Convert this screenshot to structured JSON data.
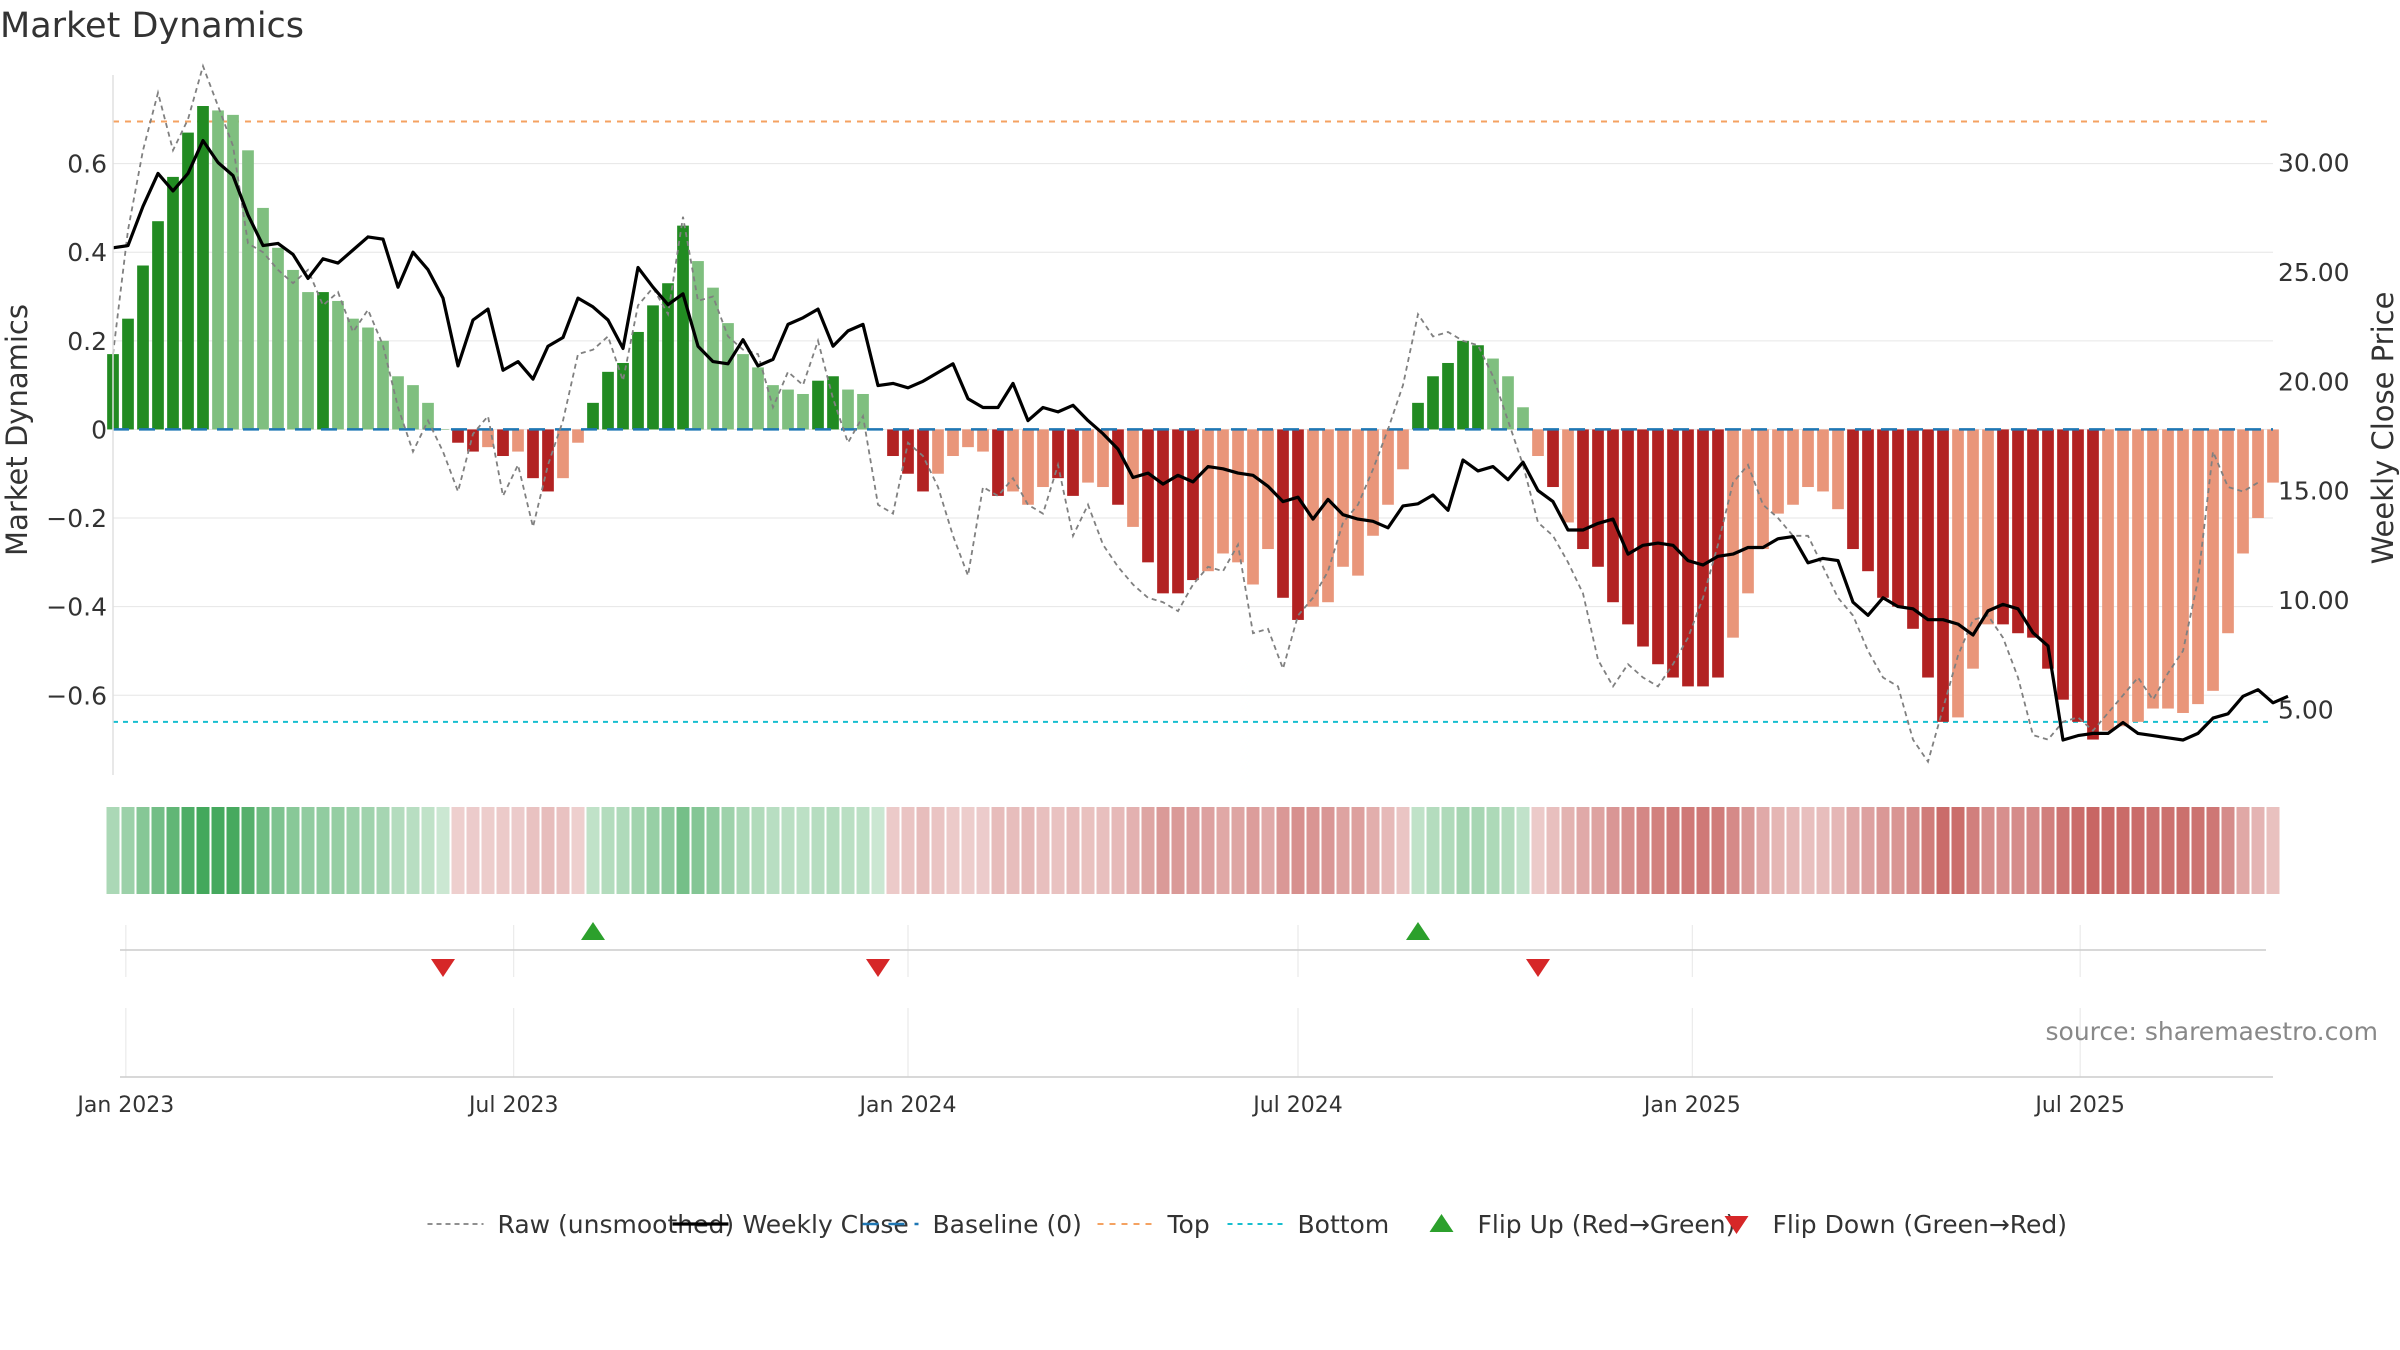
{
  "chart_data": {
    "type": "bar",
    "title": "Market Dynamics",
    "ylabel": "Market Dynamics",
    "ylabel_right": "Weekly Close Price",
    "source": "source: sharemaestro.com",
    "ylim": [
      -0.78,
      0.8
    ],
    "y2lim": [
      2.0,
      34.0
    ],
    "yticks": [
      {
        "v": 0.6,
        "label": "0.6"
      },
      {
        "v": 0.4,
        "label": "0.4"
      },
      {
        "v": 0.2,
        "label": "0.2"
      },
      {
        "v": 0,
        "label": "0"
      },
      {
        "v": -0.2,
        "label": "−0.2"
      },
      {
        "v": -0.4,
        "label": "−0.4"
      },
      {
        "v": -0.6,
        "label": "−0.6"
      }
    ],
    "y2ticks": [
      {
        "v": 30,
        "label": "30.00"
      },
      {
        "v": 25,
        "label": "25.00"
      },
      {
        "v": 20,
        "label": "20.00"
      },
      {
        "v": 15,
        "label": "15.00"
      },
      {
        "v": 10,
        "label": "10.00"
      },
      {
        "v": 5,
        "label": "5.00"
      }
    ],
    "x_start": "2022-12-26",
    "x_end": "2025-09-29",
    "xticks": [
      {
        "date": "2023-01-01",
        "label": "Jan 2023"
      },
      {
        "date": "2023-07-01",
        "label": "Jul 2023"
      },
      {
        "date": "2024-01-01",
        "label": "Jan 2024"
      },
      {
        "date": "2024-07-01",
        "label": "Jul 2024"
      },
      {
        "date": "2025-01-01",
        "label": "Jan 2025"
      },
      {
        "date": "2025-07-01",
        "label": "Jul 2025"
      }
    ],
    "first_week": "2022-12-26",
    "top_level": 0.695,
    "bottom_level": -0.66,
    "baseline": 0,
    "colors": {
      "strong_up": "#228B22",
      "weak_up": "#7FBF7F",
      "strong_down": "#B22222",
      "weak_down": "#E9967A",
      "raw": "#808080",
      "close": "#000000",
      "baseline": "#1f77b4",
      "top": "#f4a261",
      "bottom": "#17becf",
      "flip_up": "#2ca02c",
      "flip_down": "#d62728"
    },
    "dynamics": [
      0.17,
      0.25,
      0.37,
      0.47,
      0.57,
      0.67,
      0.73,
      0.72,
      0.71,
      0.63,
      0.5,
      0.41,
      0.36,
      0.31,
      0.31,
      0.29,
      0.25,
      0.23,
      0.2,
      0.12,
      0.1,
      0.06,
      0,
      -0.03,
      -0.05,
      -0.04,
      -0.06,
      -0.05,
      -0.11,
      -0.14,
      -0.11,
      -0.03,
      0.06,
      0.13,
      0.15,
      0.22,
      0.28,
      0.33,
      0.46,
      0.38,
      0.32,
      0.24,
      0.17,
      0.14,
      0.1,
      0.09,
      0.08,
      0.11,
      0.12,
      0.09,
      0.08,
      0,
      -0.06,
      -0.1,
      -0.14,
      -0.1,
      -0.06,
      -0.04,
      -0.05,
      -0.15,
      -0.14,
      -0.17,
      -0.13,
      -0.11,
      -0.15,
      -0.12,
      -0.13,
      -0.17,
      -0.22,
      -0.3,
      -0.37,
      -0.37,
      -0.34,
      -0.32,
      -0.28,
      -0.3,
      -0.35,
      -0.27,
      -0.38,
      -0.43,
      -0.4,
      -0.39,
      -0.31,
      -0.33,
      -0.24,
      -0.17,
      -0.09,
      0.06,
      0.12,
      0.15,
      0.2,
      0.19,
      0.16,
      0.12,
      0.05,
      -0.06,
      -0.13,
      -0.21,
      -0.27,
      -0.31,
      -0.39,
      -0.44,
      -0.49,
      -0.53,
      -0.56,
      -0.58,
      -0.58,
      -0.56,
      -0.47,
      -0.37,
      -0.27,
      -0.19,
      -0.17,
      -0.13,
      -0.14,
      -0.18,
      -0.27,
      -0.32,
      -0.38,
      -0.4,
      -0.45,
      -0.56,
      -0.66,
      -0.65,
      -0.54,
      -0.44,
      -0.44,
      -0.46,
      -0.47,
      -0.54,
      -0.61,
      -0.66,
      -0.7,
      -0.68,
      -0.67,
      -0.66,
      -0.63,
      -0.63,
      -0.64,
      -0.62,
      -0.59,
      -0.46,
      -0.28,
      -0.2,
      -0.12
    ],
    "strength": [
      "s",
      "s",
      "s",
      "s",
      "s",
      "s",
      "s",
      "w",
      "w",
      "w",
      "w",
      "w",
      "w",
      "w",
      "s",
      "w",
      "w",
      "w",
      "w",
      "w",
      "w",
      "w",
      "w",
      "s",
      "s",
      "w",
      "s",
      "w",
      "s",
      "s",
      "w",
      "w",
      "s",
      "s",
      "s",
      "s",
      "s",
      "s",
      "s",
      "w",
      "w",
      "w",
      "w",
      "w",
      "w",
      "w",
      "w",
      "s",
      "s",
      "w",
      "w",
      "w",
      "s",
      "s",
      "s",
      "w",
      "w",
      "w",
      "w",
      "s",
      "w",
      "w",
      "w",
      "s",
      "s",
      "w",
      "w",
      "s",
      "w",
      "s",
      "s",
      "s",
      "s",
      "w",
      "w",
      "w",
      "w",
      "w",
      "s",
      "s",
      "w",
      "w",
      "w",
      "w",
      "w",
      "w",
      "w",
      "s",
      "s",
      "s",
      "s",
      "s",
      "w",
      "w",
      "w",
      "w",
      "s",
      "w",
      "s",
      "s",
      "s",
      "s",
      "s",
      "s",
      "s",
      "s",
      "s",
      "s",
      "w",
      "w",
      "w",
      "w",
      "w",
      "w",
      "w",
      "w",
      "s",
      "s",
      "s",
      "s",
      "s",
      "s",
      "s",
      "w",
      "w",
      "w",
      "s",
      "s",
      "s",
      "s",
      "s",
      "s",
      "s",
      "w",
      "w",
      "w",
      "w",
      "w",
      "w",
      "w",
      "w",
      "w",
      "w",
      "w",
      "w",
      "w"
    ],
    "raw": [
      0.17,
      0.45,
      0.63,
      0.76,
      0.63,
      0.7,
      0.82,
      0.73,
      0.64,
      0.42,
      0.4,
      0.36,
      0.33,
      0.36,
      0.28,
      0.31,
      0.22,
      0.27,
      0.19,
      0.05,
      -0.05,
      0.02,
      -0.05,
      -0.14,
      -0.01,
      0.03,
      -0.15,
      -0.08,
      -0.22,
      -0.08,
      0.02,
      0.17,
      0.18,
      0.21,
      0.11,
      0.28,
      0.32,
      0.26,
      0.48,
      0.29,
      0.3,
      0.21,
      0.18,
      0.17,
      0.05,
      0.13,
      0.1,
      0.2,
      0.07,
      -0.03,
      0.03,
      -0.17,
      -0.19,
      -0.03,
      -0.06,
      -0.13,
      -0.24,
      -0.33,
      -0.13,
      -0.15,
      -0.11,
      -0.17,
      -0.19,
      -0.08,
      -0.24,
      -0.17,
      -0.26,
      -0.31,
      -0.35,
      -0.38,
      -0.39,
      -0.41,
      -0.35,
      -0.31,
      -0.32,
      -0.26,
      -0.46,
      -0.45,
      -0.54,
      -0.42,
      -0.38,
      -0.32,
      -0.21,
      -0.17,
      -0.09,
      0,
      0.1,
      0.26,
      0.21,
      0.22,
      0.2,
      0.19,
      0.12,
      0.02,
      -0.08,
      -0.21,
      -0.24,
      -0.3,
      -0.37,
      -0.52,
      -0.58,
      -0.53,
      -0.56,
      -0.58,
      -0.53,
      -0.47,
      -0.38,
      -0.26,
      -0.12,
      -0.08,
      -0.17,
      -0.2,
      -0.24,
      -0.24,
      -0.31,
      -0.38,
      -0.42,
      -0.5,
      -0.56,
      -0.58,
      -0.7,
      -0.75,
      -0.63,
      -0.51,
      -0.43,
      -0.42,
      -0.47,
      -0.56,
      -0.69,
      -0.7,
      -0.66,
      -0.65,
      -0.68,
      -0.64,
      -0.6,
      -0.56,
      -0.61,
      -0.55,
      -0.5,
      -0.34,
      -0.05,
      -0.13,
      -0.14,
      -0.12
    ],
    "close": [
      26.1,
      26.2,
      28.0,
      29.5,
      28.7,
      29.5,
      31.0,
      30.0,
      29.4,
      27.6,
      26.2,
      26.3,
      25.8,
      24.7,
      25.6,
      25.4,
      26.0,
      26.6,
      26.5,
      24.3,
      25.9,
      25.1,
      23.8,
      20.7,
      22.8,
      23.3,
      20.5,
      20.9,
      20.1,
      21.6,
      22.0,
      23.8,
      23.4,
      22.8,
      21.5,
      25.2,
      24.3,
      23.5,
      24.0,
      21.6,
      20.9,
      20.8,
      21.9,
      20.7,
      21.0,
      22.6,
      22.9,
      23.3,
      21.6,
      22.3,
      22.6,
      19.8,
      19.9,
      19.7,
      20.0,
      20.4,
      20.8,
      19.2,
      18.8,
      18.8,
      19.9,
      18.2,
      18.8,
      18.6,
      18.9,
      18.2,
      17.6,
      16.9,
      15.6,
      15.8,
      15.3,
      15.7,
      15.4,
      16.1,
      16.0,
      15.8,
      15.7,
      15.2,
      14.5,
      14.7,
      13.7,
      14.6,
      13.9,
      13.7,
      13.6,
      13.3,
      14.3,
      14.4,
      14.8,
      14.1,
      16.4,
      15.9,
      16.1,
      15.5,
      16.3,
      15.0,
      14.5,
      13.2,
      13.2,
      13.5,
      13.7,
      12.1,
      12.5,
      12.6,
      12.5,
      11.8,
      11.6,
      12.0,
      12.1,
      12.4,
      12.4,
      12.8,
      12.9,
      11.7,
      11.9,
      11.8,
      9.9,
      9.3,
      10.1,
      9.7,
      9.6,
      9.1,
      9.1,
      8.9,
      8.4,
      9.5,
      9.8,
      9.6,
      8.5,
      7.9,
      3.6,
      3.8,
      3.9,
      3.9,
      4.4,
      3.9,
      3.8,
      3.7,
      3.6,
      3.9,
      4.6,
      4.8,
      5.6,
      5.9,
      5.3,
      5.6
    ],
    "flips": [
      {
        "dir": "down",
        "week": 22
      },
      {
        "dir": "up",
        "week": 32
      },
      {
        "dir": "down",
        "week": 51
      },
      {
        "dir": "up",
        "week": 87
      },
      {
        "dir": "down",
        "week": 95
      }
    ],
    "legend": [
      {
        "key": "raw",
        "label": "Raw (unsmoothed)"
      },
      {
        "key": "close",
        "label": "Weekly Close"
      },
      {
        "key": "baseline",
        "label": "Baseline (0)"
      },
      {
        "key": "top",
        "label": "Top"
      },
      {
        "key": "bottom",
        "label": "Bottom"
      },
      {
        "key": "flip_up",
        "label": "Flip Up (Red→Green)"
      },
      {
        "key": "flip_down",
        "label": "Flip Down (Green→Red)"
      }
    ]
  }
}
